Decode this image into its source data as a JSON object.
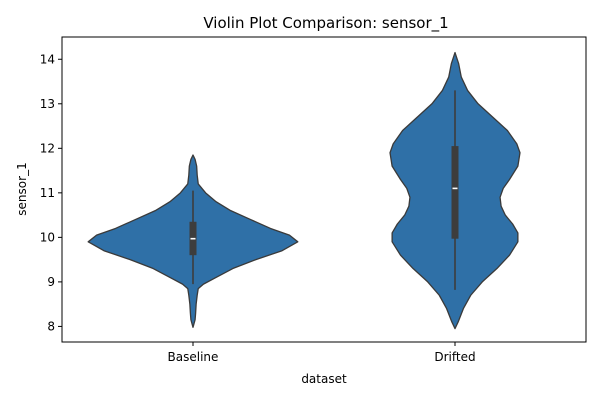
{
  "chart_data": {
    "type": "violin",
    "title": "Violin Plot Comparison: sensor_1",
    "xlabel": "dataset",
    "ylabel": "sensor_1",
    "categories": [
      "Baseline",
      "Drifted"
    ],
    "ylim": [
      7.65,
      14.5
    ],
    "yticks": [
      "8",
      "9",
      "10",
      "11",
      "12",
      "13",
      "14"
    ],
    "grid": false,
    "colors": {
      "violin_fill": "#2f70a7",
      "violin_stroke": "#3a3a3a",
      "box": "#3d3d3d",
      "median": "#ffffff"
    },
    "violins": [
      {
        "category": "Baseline",
        "min": 7.98,
        "max": 11.85,
        "q1": 9.6,
        "median": 9.97,
        "q3": 10.35,
        "whisker_low": 8.95,
        "whisker_high": 11.05,
        "density_profile": [
          [
            7.98,
            0.0
          ],
          [
            8.15,
            0.02
          ],
          [
            8.3,
            0.025
          ],
          [
            8.5,
            0.03
          ],
          [
            8.7,
            0.04
          ],
          [
            8.85,
            0.05
          ],
          [
            8.95,
            0.1
          ],
          [
            9.1,
            0.22
          ],
          [
            9.3,
            0.38
          ],
          [
            9.5,
            0.6
          ],
          [
            9.7,
            0.85
          ],
          [
            9.9,
            1.0
          ],
          [
            10.05,
            0.92
          ],
          [
            10.2,
            0.74
          ],
          [
            10.4,
            0.55
          ],
          [
            10.6,
            0.36
          ],
          [
            10.8,
            0.22
          ],
          [
            11.0,
            0.12
          ],
          [
            11.2,
            0.05
          ],
          [
            11.4,
            0.04
          ],
          [
            11.6,
            0.035
          ],
          [
            11.75,
            0.02
          ],
          [
            11.85,
            0.0
          ]
        ]
      },
      {
        "category": "Drifted",
        "min": 7.95,
        "max": 14.15,
        "q1": 9.97,
        "median": 11.1,
        "q3": 12.05,
        "whisker_low": 8.82,
        "whisker_high": 13.3,
        "density_profile": [
          [
            7.95,
            0.0
          ],
          [
            8.1,
            0.03
          ],
          [
            8.4,
            0.08
          ],
          [
            8.7,
            0.15
          ],
          [
            9.0,
            0.26
          ],
          [
            9.3,
            0.4
          ],
          [
            9.6,
            0.52
          ],
          [
            9.9,
            0.6
          ],
          [
            10.1,
            0.6
          ],
          [
            10.3,
            0.55
          ],
          [
            10.5,
            0.48
          ],
          [
            10.7,
            0.44
          ],
          [
            10.9,
            0.43
          ],
          [
            11.1,
            0.46
          ],
          [
            11.3,
            0.52
          ],
          [
            11.6,
            0.6
          ],
          [
            11.9,
            0.62
          ],
          [
            12.1,
            0.59
          ],
          [
            12.4,
            0.5
          ],
          [
            12.7,
            0.36
          ],
          [
            13.0,
            0.22
          ],
          [
            13.3,
            0.12
          ],
          [
            13.6,
            0.06
          ],
          [
            13.9,
            0.035
          ],
          [
            14.15,
            0.0
          ]
        ]
      }
    ]
  }
}
